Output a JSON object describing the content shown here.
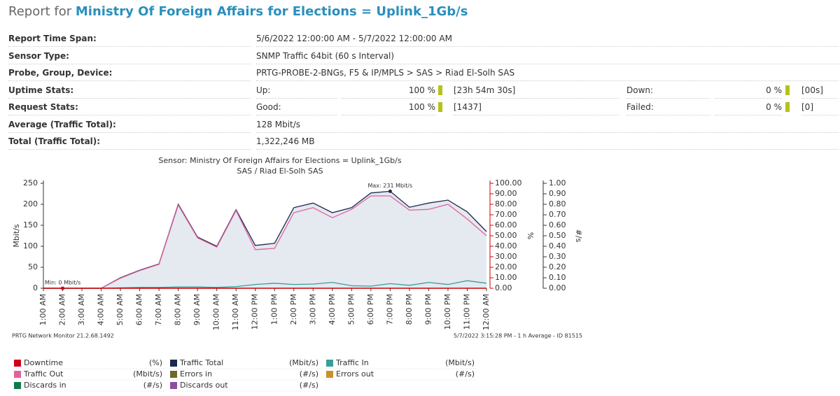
{
  "header": {
    "prefix": "Report for",
    "title": "Ministry Of Foreign Affairs for Elections = Uplink_1Gb/s"
  },
  "info": [
    {
      "label": "Report Time Span:",
      "value": "5/6/2022 12:00:00 AM - 5/7/2022 12:00:00 AM"
    },
    {
      "label": "Sensor Type:",
      "value": "SNMP Traffic 64bit (60 s Interval)"
    },
    {
      "label": "Probe, Group, Device:",
      "value": "PRTG-PROBE-2-BNGs, F5 & IP/MPLS > SAS > Riad El-Solh SAS"
    }
  ],
  "stats": [
    {
      "label": "Uptime Stats:",
      "a_label": "Up:",
      "a_pct": "100 %",
      "a_extra": "[23h 54m 30s]",
      "b_label": "Down:",
      "b_pct": "0 %",
      "b_extra": "[00s]"
    },
    {
      "label": "Request Stats:",
      "a_label": "Good:",
      "a_pct": "100 %",
      "a_extra": "[1437]",
      "b_label": "Failed:",
      "b_pct": "0 %",
      "b_extra": "[0]"
    }
  ],
  "totals": [
    {
      "label": "Average (Traffic Total):",
      "value": "128 Mbit/s"
    },
    {
      "label": "Total (Traffic Total):",
      "value": "1,322,246 MB"
    }
  ],
  "chart_data": {
    "type": "line",
    "title": "Sensor: Ministry Of Foreign Affairs for Elections = Uplink_1Gb/s",
    "subtitle": "SAS / Riad El-Solh SAS",
    "ylabel": "Mbit/s",
    "y2label": "%",
    "y3label": "#/s",
    "categories": [
      "1:00 AM",
      "2:00 AM",
      "3:00 AM",
      "4:00 AM",
      "5:00 AM",
      "6:00 AM",
      "7:00 AM",
      "8:00 AM",
      "9:00 AM",
      "10:00 AM",
      "11:00 AM",
      "12:00 PM",
      "1:00 PM",
      "2:00 PM",
      "3:00 PM",
      "4:00 PM",
      "5:00 PM",
      "6:00 PM",
      "7:00 PM",
      "8:00 PM",
      "9:00 PM",
      "10:00 PM",
      "11:00 PM",
      "12:00 AM"
    ],
    "ylim": [
      0,
      250
    ],
    "yticks": [
      0,
      50,
      100,
      150,
      200,
      250
    ],
    "y2lim": [
      0,
      100
    ],
    "y2ticks": [
      {
        "value": 0,
        "label": "0.00"
      },
      {
        "value": 10,
        "label": "10.00"
      },
      {
        "value": 20,
        "label": "20.00"
      },
      {
        "value": 30,
        "label": "30.00"
      },
      {
        "value": 40,
        "label": "40.00"
      },
      {
        "value": 50,
        "label": "50.00"
      },
      {
        "value": 60,
        "label": "60.00"
      },
      {
        "value": 70,
        "label": "70.00"
      },
      {
        "value": 80,
        "label": "80.00"
      },
      {
        "value": 90,
        "label": "90.00"
      },
      {
        "value": 100,
        "label": "100.00"
      }
    ],
    "y3lim": [
      0,
      1
    ],
    "y3ticks": [
      {
        "value": 0,
        "label": "0.00"
      },
      {
        "value": 0.1,
        "label": "0.10"
      },
      {
        "value": 0.2,
        "label": "0.20"
      },
      {
        "value": 0.3,
        "label": "0.30"
      },
      {
        "value": 0.4,
        "label": "0.40"
      },
      {
        "value": 0.5,
        "label": "0.50"
      },
      {
        "value": 0.6,
        "label": "0.60"
      },
      {
        "value": 0.7,
        "label": "0.70"
      },
      {
        "value": 0.8,
        "label": "0.80"
      },
      {
        "value": 0.9,
        "label": "0.90"
      },
      {
        "value": 1,
        "label": "1.00"
      }
    ],
    "annotations": [
      {
        "text": "Max: 231 Mbit/s",
        "index": 18,
        "series": 1
      },
      {
        "text": "Min: 0 Mbit/s",
        "index": 1,
        "series": 1
      }
    ],
    "series": [
      {
        "name": "Downtime",
        "unit": "(%)",
        "color": "#d0021b"
      },
      {
        "name": "Traffic Total",
        "unit": "(Mbit/s)",
        "color": "#1b2a4e",
        "fill": true,
        "values": [
          0,
          0,
          0,
          0,
          25,
          43,
          58,
          200,
          122,
          100,
          187,
          102,
          107,
          192,
          203,
          180,
          192,
          227,
          231,
          193,
          203,
          210,
          182,
          135
        ]
      },
      {
        "name": "Traffic In",
        "unit": "(Mbit/s)",
        "color": "#3a9e9a",
        "values": [
          0,
          0,
          0,
          0,
          1,
          2,
          2,
          3,
          3,
          2,
          4,
          9,
          12,
          9,
          10,
          14,
          6,
          5,
          11,
          7,
          14,
          9,
          18,
          12
        ]
      },
      {
        "name": "Traffic Out",
        "unit": "(Mbit/s)",
        "color": "#e3619e",
        "values": [
          0,
          0,
          0,
          0,
          24,
          42,
          57,
          198,
          120,
          98,
          185,
          92,
          95,
          180,
          192,
          168,
          188,
          220,
          220,
          186,
          188,
          200,
          165,
          125
        ]
      },
      {
        "name": "Errors in",
        "unit": "(#/s)",
        "color": "#6b6b2a"
      },
      {
        "name": "Errors out",
        "unit": "(#/s)",
        "color": "#c8922a"
      },
      {
        "name": "Discards in",
        "unit": "(#/s)",
        "color": "#0f7b4d"
      },
      {
        "name": "Discards out",
        "unit": "(#/s)",
        "color": "#8c4fa0"
      }
    ]
  },
  "footer": {
    "left": "PRTG Network Monitor 21.2.68.1492",
    "right": "5/7/2022 3:15:28 PM - 1 h Average - ID 81515"
  }
}
